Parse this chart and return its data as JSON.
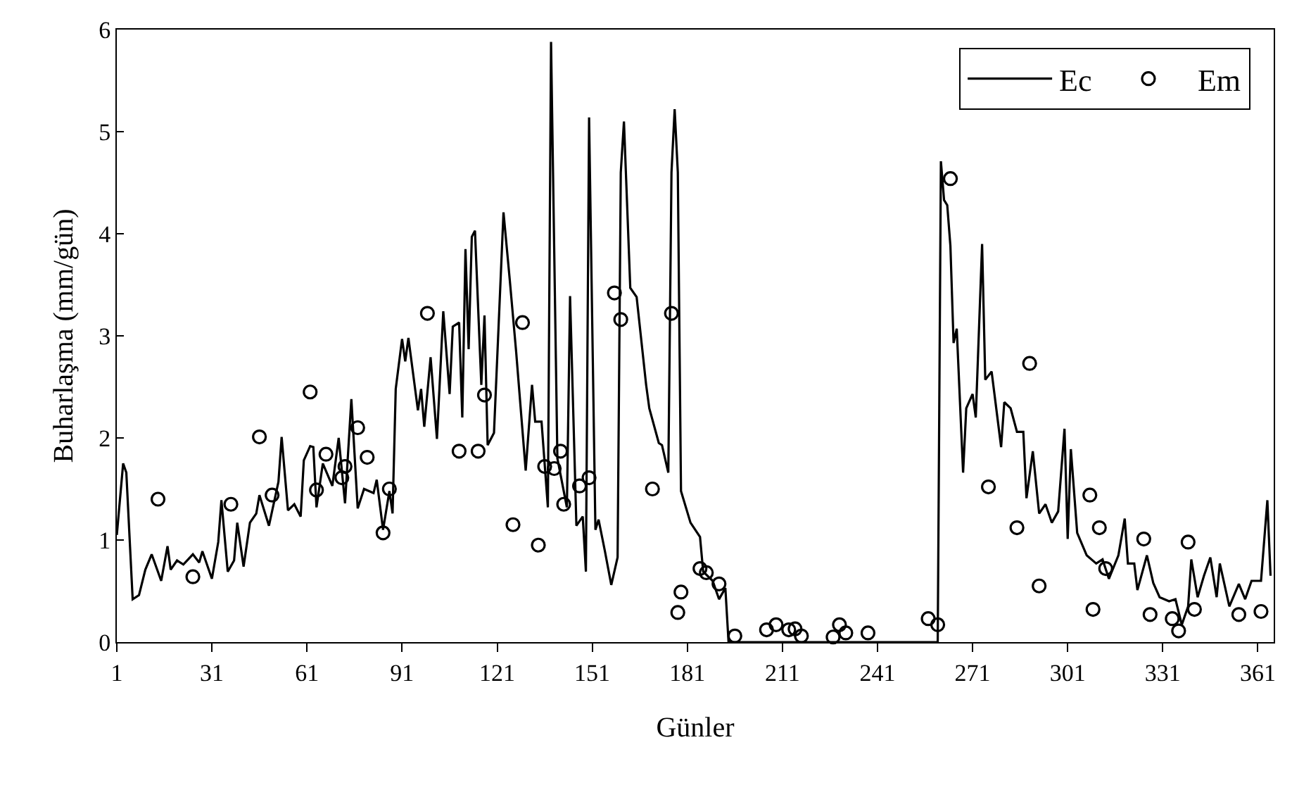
{
  "chart_data": {
    "type": "line",
    "xlabel": "Günler",
    "ylabel": "Buharlaşma (mm/gün)",
    "xlim": [
      1,
      366
    ],
    "xticks": [
      1,
      31,
      61,
      91,
      121,
      151,
      181,
      211,
      241,
      271,
      301,
      331,
      361
    ],
    "ylim": [
      0,
      6
    ],
    "yticks": [
      0,
      1,
      2,
      3,
      4,
      5,
      6
    ],
    "grid": false,
    "legend": "top right",
    "series": [
      {
        "name": "Ec",
        "type": "line",
        "color": "#000000",
        "marker": "none",
        "line_style": "solid",
        "x": [
          1,
          3,
          4,
          6,
          8,
          10,
          12,
          15,
          17,
          18,
          20,
          22,
          25,
          27,
          28,
          31,
          33,
          34,
          36,
          38,
          39,
          41,
          43,
          45,
          46,
          49,
          52,
          53,
          55,
          57,
          59,
          60,
          62,
          63,
          64,
          66,
          69,
          71,
          73,
          75,
          77,
          79,
          82,
          83,
          85,
          87,
          88,
          89,
          91,
          92,
          93,
          96,
          97,
          98,
          100,
          102,
          104,
          106,
          107,
          109,
          110,
          111,
          112,
          113,
          114,
          116,
          117,
          118,
          120,
          123,
          125,
          127,
          130,
          132,
          133,
          135,
          137,
          138,
          140,
          143,
          144,
          146,
          148,
          149,
          150,
          152,
          153,
          155,
          157,
          159,
          160,
          161,
          163,
          165,
          168,
          169,
          172,
          173,
          175,
          176,
          177,
          178,
          179,
          182,
          185,
          186,
          189,
          191,
          193,
          194,
          260,
          261,
          262,
          263,
          264,
          265,
          266,
          268,
          269,
          271,
          272,
          274,
          275,
          277,
          280,
          281,
          283,
          285,
          287,
          288,
          290,
          292,
          294,
          296,
          298,
          300,
          301,
          302,
          304,
          307,
          310,
          312,
          314,
          317,
          319,
          320,
          322,
          323,
          326,
          328,
          330,
          333,
          335,
          337,
          339,
          340,
          342,
          344,
          346,
          348,
          349,
          352,
          355,
          357,
          359,
          362,
          364,
          365
        ],
        "values": [
          1.05,
          1.75,
          1.66,
          0.42,
          0.46,
          0.71,
          0.86,
          0.6,
          0.94,
          0.71,
          0.8,
          0.76,
          0.86,
          0.78,
          0.89,
          0.62,
          0.98,
          1.39,
          0.69,
          0.8,
          1.17,
          0.74,
          1.17,
          1.26,
          1.44,
          1.14,
          1.57,
          2.01,
          1.29,
          1.35,
          1.23,
          1.78,
          1.92,
          1.91,
          1.32,
          1.75,
          1.53,
          2.0,
          1.36,
          2.38,
          1.31,
          1.5,
          1.46,
          1.59,
          1.1,
          1.48,
          1.26,
          2.48,
          2.97,
          2.75,
          2.98,
          2.27,
          2.48,
          2.11,
          2.79,
          1.99,
          3.24,
          2.43,
          3.09,
          3.13,
          2.2,
          3.85,
          2.87,
          3.97,
          4.03,
          2.52,
          3.2,
          1.93,
          2.05,
          4.21,
          3.54,
          2.84,
          1.68,
          2.52,
          2.16,
          2.16,
          1.32,
          5.88,
          1.8,
          1.32,
          3.39,
          1.14,
          1.23,
          0.69,
          5.14,
          1.1,
          1.2,
          0.89,
          0.56,
          0.83,
          4.6,
          5.1,
          3.47,
          3.38,
          2.52,
          2.29,
          1.95,
          1.93,
          1.66,
          4.6,
          5.22,
          4.6,
          1.48,
          1.17,
          1.03,
          0.69,
          0.6,
          0.42,
          0.53,
          0,
          0,
          4.71,
          4.33,
          4.28,
          3.88,
          2.93,
          3.07,
          1.66,
          2.29,
          2.43,
          2.2,
          3.9,
          2.57,
          2.65,
          1.91,
          2.35,
          2.29,
          2.06,
          2.06,
          1.41,
          1.87,
          1.26,
          1.35,
          1.17,
          1.28,
          2.09,
          1.01,
          1.89,
          1.07,
          0.85,
          0.77,
          0.81,
          0.62,
          0.85,
          1.21,
          0.77,
          0.77,
          0.51,
          0.85,
          0.58,
          0.44,
          0.4,
          0.42,
          0.17,
          0.35,
          0.81,
          0.44,
          0.65,
          0.83,
          0.44,
          0.77,
          0.35,
          0.57,
          0.42,
          0.6,
          0.6,
          1.39,
          0.65
        ]
      },
      {
        "name": "Em",
        "type": "scatter",
        "color": "#000000",
        "marker": "circle",
        "x": [
          14,
          25,
          37,
          46,
          50,
          62,
          64,
          67,
          72,
          73,
          77,
          80,
          85,
          87,
          99,
          109,
          115,
          117,
          126,
          129,
          134,
          136,
          139,
          141,
          142,
          147,
          150,
          158,
          160,
          170,
          176,
          178,
          179,
          185,
          187,
          191,
          196,
          206,
          209,
          213,
          215,
          217,
          227,
          229,
          231,
          238,
          257,
          260,
          264,
          276,
          285,
          289,
          292,
          308,
          309,
          311,
          313,
          325,
          327,
          334,
          336,
          339,
          341,
          355,
          362
        ],
        "values": [
          1.4,
          0.64,
          1.35,
          2.01,
          1.44,
          2.45,
          1.49,
          1.84,
          1.61,
          1.72,
          2.1,
          1.81,
          1.07,
          1.5,
          3.22,
          1.87,
          1.87,
          2.42,
          1.15,
          3.13,
          0.95,
          1.72,
          1.7,
          1.87,
          1.35,
          1.53,
          1.61,
          3.42,
          3.16,
          1.5,
          3.22,
          0.29,
          0.49,
          0.72,
          0.68,
          0.57,
          0.06,
          0.12,
          0.17,
          0.12,
          0.13,
          0.06,
          0.05,
          0.17,
          0.09,
          0.09,
          0.23,
          0.17,
          4.54,
          1.52,
          1.12,
          2.73,
          0.55,
          1.44,
          0.32,
          1.12,
          0.72,
          1.01,
          0.27,
          0.23,
          0.11,
          0.98,
          0.32,
          0.27,
          0.3
        ]
      }
    ]
  }
}
